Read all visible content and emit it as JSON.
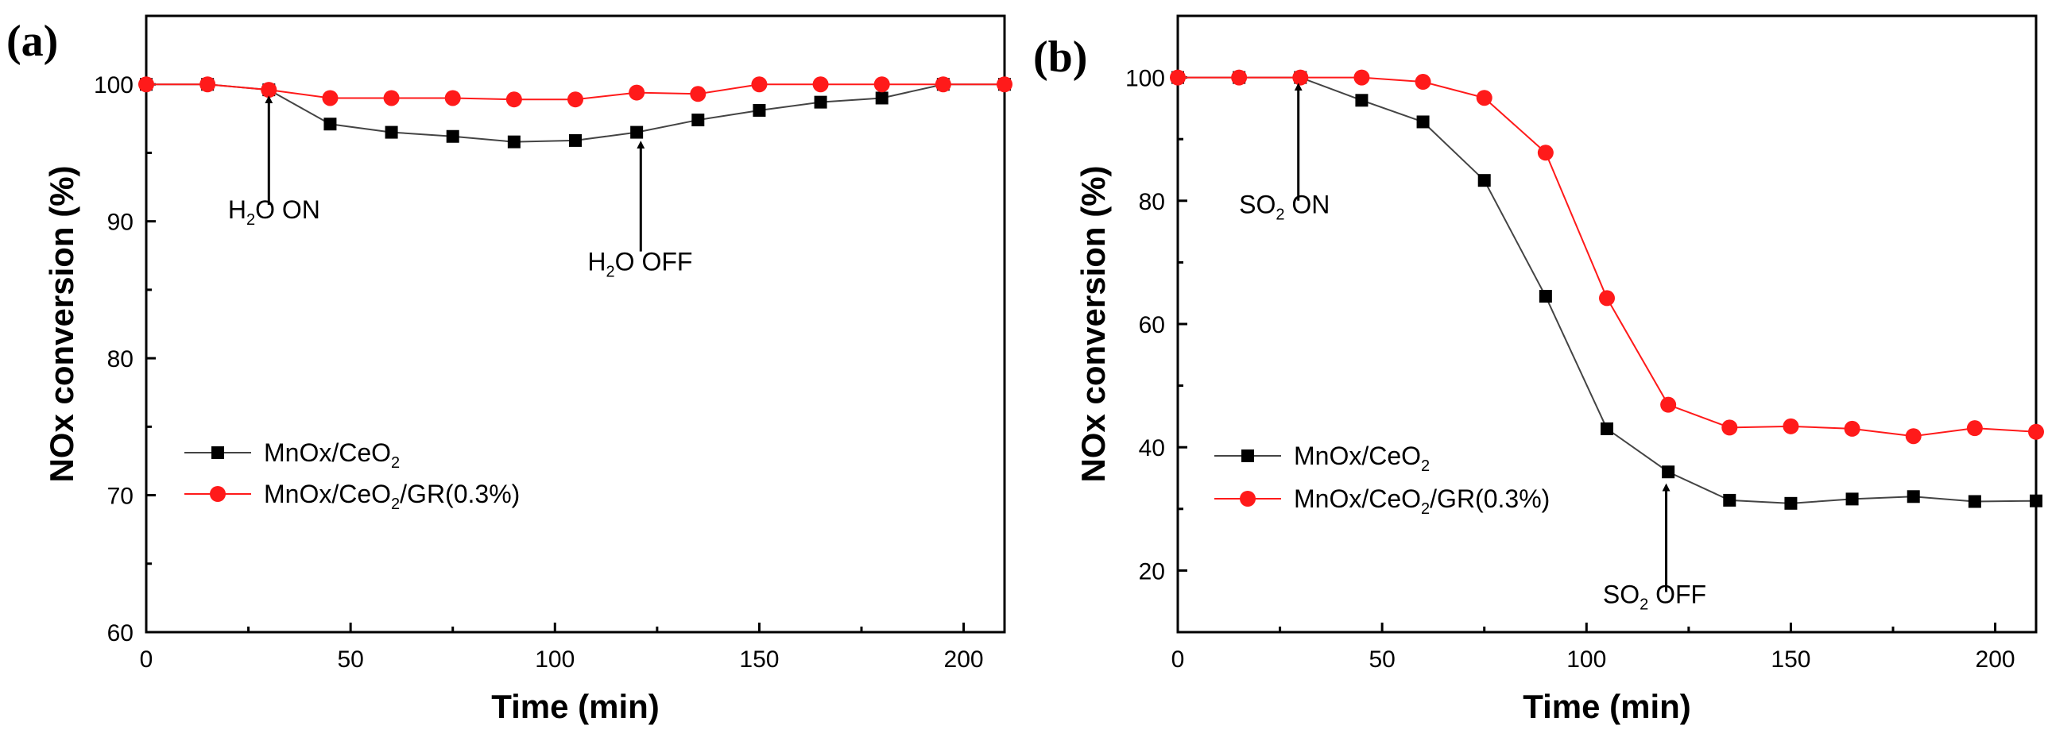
{
  "chart_data": [
    {
      "type": "line",
      "panel_label": "(a)",
      "xlabel": "Time (min)",
      "ylabel": "NOx conversion (%)",
      "xlim": [
        0,
        210
      ],
      "ylim": [
        60,
        105
      ],
      "xticks": [
        0,
        50,
        100,
        150,
        200
      ],
      "yticks": [
        60,
        70,
        80,
        90,
        100
      ],
      "legend_position": "lower-left",
      "series": [
        {
          "name": "MnOx/CeO2",
          "legend_main": "MnOx/CeO",
          "legend_sub": "2",
          "legend_tail": "",
          "color": "#000000",
          "marker": "square",
          "line_color": "#444444",
          "x": [
            0,
            15,
            30,
            45,
            60,
            75,
            90,
            105,
            120,
            135,
            150,
            165,
            180,
            195,
            210
          ],
          "y": [
            100,
            100,
            99.6,
            97.1,
            96.5,
            96.2,
            95.8,
            95.9,
            96.5,
            97.4,
            98.1,
            98.7,
            99.0,
            100,
            100
          ]
        },
        {
          "name": "MnOx/CeO2/GR(0.3%)",
          "legend_main": "MnOx/CeO",
          "legend_sub": "2",
          "legend_tail": "/GR(0.3%)",
          "color": "#ff1a1a",
          "marker": "circle",
          "line_color": "#ff1a1a",
          "x": [
            0,
            15,
            30,
            45,
            60,
            75,
            90,
            105,
            120,
            135,
            150,
            165,
            180,
            195,
            210
          ],
          "y": [
            100,
            100,
            99.6,
            99.0,
            99.0,
            99.0,
            98.9,
            98.9,
            99.4,
            99.3,
            100,
            100,
            100,
            100,
            100
          ]
        }
      ],
      "annotations": [
        {
          "main": "H",
          "sub": "2",
          "tail": "O ON",
          "arrow_x": 30,
          "arrow_from_y": 91.2,
          "arrow_to_y": 98.9,
          "text_x": 20,
          "text_y": 90.2
        },
        {
          "main": "H",
          "sub": "2",
          "tail": "O OFF",
          "arrow_x": 121,
          "arrow_from_y": 87.8,
          "arrow_to_y": 95.6,
          "text_x": 108,
          "text_y": 86.4
        }
      ]
    },
    {
      "type": "line",
      "panel_label": "(b)",
      "xlabel": "Time (min)",
      "ylabel": "NOx conversion (%)",
      "xlim": [
        0,
        210
      ],
      "ylim": [
        10,
        110
      ],
      "xticks": [
        0,
        50,
        100,
        150,
        200
      ],
      "yticks": [
        20,
        40,
        60,
        80,
        100
      ],
      "legend_position": "lower-left",
      "series": [
        {
          "name": "MnOx/CeO2",
          "legend_main": "MnOx/CeO",
          "legend_sub": "2",
          "legend_tail": "",
          "color": "#000000",
          "marker": "square",
          "line_color": "#444444",
          "x": [
            0,
            15,
            30,
            45,
            60,
            75,
            90,
            105,
            120,
            135,
            150,
            165,
            180,
            195,
            210
          ],
          "y": [
            100,
            100,
            100,
            96.3,
            92.8,
            83.3,
            64.5,
            43.0,
            36.0,
            31.4,
            30.9,
            31.6,
            32.0,
            31.2,
            31.3
          ]
        },
        {
          "name": "MnOx/CeO2/GR(0.3%)",
          "legend_main": "MnOx/CeO",
          "legend_sub": "2",
          "legend_tail": "/GR(0.3%)",
          "color": "#ff1a1a",
          "marker": "circle",
          "line_color": "#ff1a1a",
          "x": [
            0,
            15,
            30,
            45,
            60,
            75,
            90,
            105,
            120,
            135,
            150,
            165,
            180,
            195,
            210
          ],
          "y": [
            100,
            100,
            100,
            100,
            99.3,
            96.7,
            87.8,
            64.2,
            46.9,
            43.2,
            43.4,
            43.0,
            41.8,
            43.1,
            42.5
          ]
        }
      ],
      "annotations": [
        {
          "main": "SO",
          "sub": "2",
          "tail": " ON",
          "arrow_x": 29.5,
          "arrow_from_y": 80,
          "arrow_to_y": 98.5,
          "text_x": 15,
          "text_y": 78
        },
        {
          "main": "SO",
          "sub": "2",
          "tail": " OFF",
          "arrow_x": 119.5,
          "arrow_from_y": 16.5,
          "arrow_to_y": 33.5,
          "text_x": 104,
          "text_y": 14.7
        }
      ]
    }
  ]
}
